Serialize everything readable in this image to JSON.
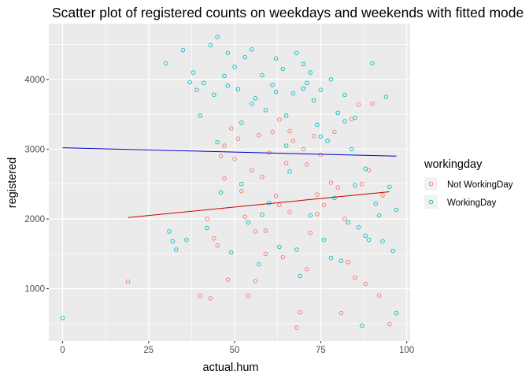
{
  "chart_data": {
    "type": "scatter",
    "title": "Scatter plot of registered counts on weekdays and weekends with fitted mode",
    "xlabel": "actual.hum",
    "ylabel": "registered",
    "xlim": [
      -4,
      101
    ],
    "ylim": [
      250,
      4800
    ],
    "x_ticks": [
      0,
      25,
      50,
      75,
      100
    ],
    "y_ticks": [
      1000,
      2000,
      3000,
      4000
    ],
    "grid": true,
    "legend": {
      "title": "workingday",
      "placement": "right"
    },
    "colors": {
      "Not WorkingDay": "#F8766D",
      "WorkingDay": "#00BFC4"
    },
    "series": [
      {
        "name": "Not WorkingDay",
        "color": "#F8766D",
        "points": [
          [
            19,
            1100
          ],
          [
            40,
            900
          ],
          [
            43,
            860
          ],
          [
            44,
            1720
          ],
          [
            45,
            1620
          ],
          [
            46,
            2900
          ],
          [
            47,
            2580
          ],
          [
            48,
            1130
          ],
          [
            49,
            3300
          ],
          [
            50,
            2860
          ],
          [
            51,
            3150
          ],
          [
            52,
            2400
          ],
          [
            53,
            2030
          ],
          [
            54,
            900
          ],
          [
            55,
            2700
          ],
          [
            56,
            1820
          ],
          [
            57,
            3200
          ],
          [
            58,
            2600
          ],
          [
            59,
            1500
          ],
          [
            60,
            2950
          ],
          [
            61,
            3250
          ],
          [
            62,
            2330
          ],
          [
            63,
            2200
          ],
          [
            64,
            1450
          ],
          [
            65,
            2800
          ],
          [
            66,
            2100
          ],
          [
            67,
            3120
          ],
          [
            68,
            440
          ],
          [
            69,
            660
          ],
          [
            70,
            3000
          ],
          [
            71,
            2780
          ],
          [
            72,
            1800
          ],
          [
            73,
            3190
          ],
          [
            74,
            2350
          ],
          [
            75,
            2920
          ],
          [
            76,
            2200
          ],
          [
            78,
            2520
          ],
          [
            79,
            3250
          ],
          [
            80,
            2450
          ],
          [
            81,
            650
          ],
          [
            82,
            2000
          ],
          [
            83,
            1380
          ],
          [
            84,
            3430
          ],
          [
            85,
            1160
          ],
          [
            86,
            3640
          ],
          [
            87,
            2500
          ],
          [
            88,
            1070
          ],
          [
            89,
            2700
          ],
          [
            90,
            3650
          ],
          [
            92,
            900
          ],
          [
            93,
            2340
          ],
          [
            95,
            490
          ],
          [
            42,
            2000
          ],
          [
            56,
            1110
          ],
          [
            63,
            3420
          ],
          [
            71,
            1280
          ],
          [
            47,
            3050
          ],
          [
            59,
            1830
          ],
          [
            66,
            3260
          ],
          [
            74,
            2070
          ]
        ]
      },
      {
        "name": "WorkingDay",
        "color": "#00BFC4",
        "points": [
          [
            0,
            580
          ],
          [
            30,
            4230
          ],
          [
            31,
            1820
          ],
          [
            32,
            1680
          ],
          [
            33,
            1560
          ],
          [
            35,
            4420
          ],
          [
            36,
            1700
          ],
          [
            37,
            3960
          ],
          [
            38,
            4100
          ],
          [
            39,
            3850
          ],
          [
            40,
            3480
          ],
          [
            41,
            3950
          ],
          [
            42,
            1870
          ],
          [
            43,
            4490
          ],
          [
            44,
            3780
          ],
          [
            45,
            4610
          ],
          [
            46,
            2380
          ],
          [
            47,
            4050
          ],
          [
            48,
            4380
          ],
          [
            49,
            1520
          ],
          [
            50,
            4180
          ],
          [
            51,
            3860
          ],
          [
            52,
            2500
          ],
          [
            53,
            4320
          ],
          [
            54,
            1950
          ],
          [
            55,
            4430
          ],
          [
            56,
            3730
          ],
          [
            57,
            1350
          ],
          [
            58,
            4060
          ],
          [
            59,
            3560
          ],
          [
            60,
            2230
          ],
          [
            61,
            3920
          ],
          [
            62,
            4300
          ],
          [
            63,
            1600
          ],
          [
            64,
            4150
          ],
          [
            65,
            3480
          ],
          [
            66,
            2680
          ],
          [
            67,
            3800
          ],
          [
            68,
            4380
          ],
          [
            69,
            1180
          ],
          [
            70,
            4220
          ],
          [
            71,
            3950
          ],
          [
            72,
            2050
          ],
          [
            73,
            3700
          ],
          [
            74,
            3350
          ],
          [
            75,
            3850
          ],
          [
            76,
            1700
          ],
          [
            77,
            3120
          ],
          [
            78,
            4000
          ],
          [
            79,
            2300
          ],
          [
            80,
            3520
          ],
          [
            81,
            1400
          ],
          [
            82,
            3400
          ],
          [
            83,
            1950
          ],
          [
            84,
            3000
          ],
          [
            85,
            2480
          ],
          [
            86,
            1880
          ],
          [
            87,
            470
          ],
          [
            88,
            2720
          ],
          [
            89,
            1700
          ],
          [
            90,
            4230
          ],
          [
            91,
            2220
          ],
          [
            92,
            2050
          ],
          [
            93,
            1680
          ],
          [
            94,
            3750
          ],
          [
            95,
            2460
          ],
          [
            96,
            1540
          ],
          [
            97,
            650
          ],
          [
            97,
            2130
          ],
          [
            45,
            3100
          ],
          [
            55,
            3650
          ],
          [
            65,
            3050
          ],
          [
            75,
            3180
          ],
          [
            85,
            3450
          ],
          [
            52,
            3380
          ],
          [
            62,
            3820
          ],
          [
            72,
            4100
          ],
          [
            82,
            3780
          ],
          [
            58,
            2060
          ],
          [
            68,
            1560
          ],
          [
            78,
            1440
          ],
          [
            88,
            1760
          ],
          [
            48,
            3910
          ],
          [
            70,
            3870
          ]
        ]
      }
    ],
    "fitted_lines": [
      {
        "name": "Not WorkingDay",
        "color": "#CC0000",
        "x": [
          19,
          95
        ],
        "y": [
          2020,
          2390
        ]
      },
      {
        "name": "WorkingDay",
        "color": "#0000CC",
        "x": [
          0,
          97
        ],
        "y": [
          3020,
          2900
        ]
      }
    ]
  }
}
